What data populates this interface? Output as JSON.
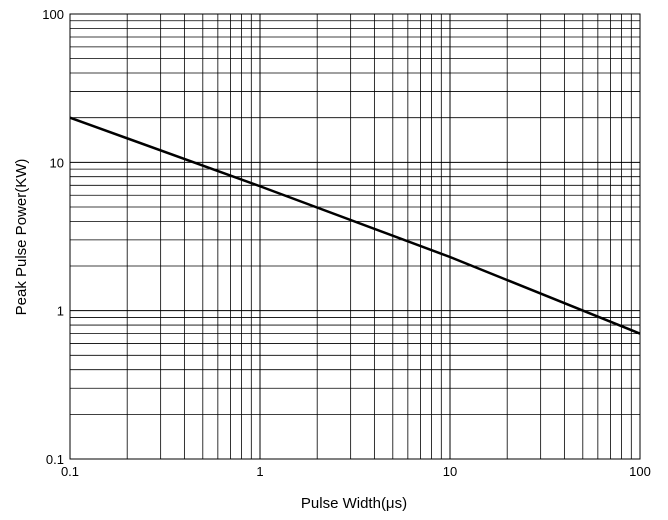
{
  "chart_data": {
    "type": "line",
    "title": "",
    "xlabel": "Pulse Width(μs)",
    "ylabel": "Peak Pulse Power(KW)",
    "xscale": "log",
    "yscale": "log",
    "xlim": [
      0.1,
      100
    ],
    "ylim": [
      0.1,
      100
    ],
    "xticks": [
      {
        "value": 0.1,
        "label": "0.1"
      },
      {
        "value": 1,
        "label": "1"
      },
      {
        "value": 10,
        "label": "10"
      },
      {
        "value": 100,
        "label": "100"
      }
    ],
    "yticks": [
      {
        "value": 0.1,
        "label": "0.1"
      },
      {
        "value": 1,
        "label": "1"
      },
      {
        "value": 10,
        "label": "10"
      },
      {
        "value": 100,
        "label": "100"
      }
    ],
    "grid": true,
    "minor_grid": true,
    "legend": "none",
    "series": [
      {
        "x": [
          0.1,
          1,
          10,
          100
        ],
        "y": [
          20,
          6.9,
          2.3,
          0.7
        ],
        "color": "#000000"
      }
    ]
  }
}
